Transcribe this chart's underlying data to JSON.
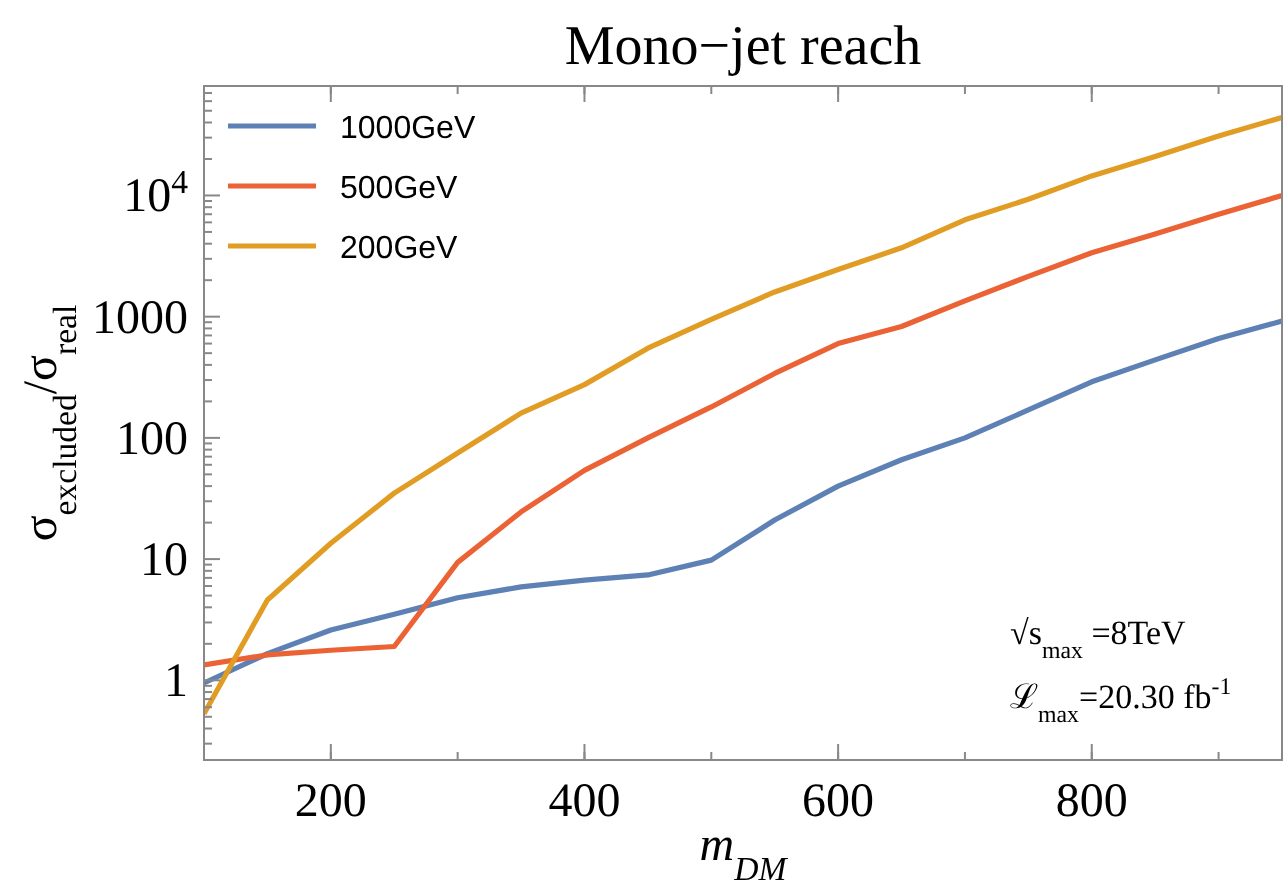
{
  "chart_data": {
    "type": "line",
    "title": "Mono−jet reach",
    "xlabel": "m$_{DM}$",
    "ylabel": "σ$_{excluded}$/σ$_{real}$",
    "x": [
      100,
      150,
      200,
      250,
      300,
      350,
      400,
      450,
      500,
      550,
      600,
      650,
      700,
      750,
      800,
      850,
      900,
      950
    ],
    "series": [
      {
        "name": "1000GeV",
        "color": "#5e81b5",
        "values": [
          0.95,
          1.66,
          2.6,
          3.5,
          4.8,
          5.9,
          6.7,
          7.4,
          9.8,
          21,
          40,
          66,
          100,
          170,
          290,
          440,
          660,
          920
        ]
      },
      {
        "name": "500GeV",
        "color": "#eb6235",
        "values": [
          1.34,
          1.62,
          1.77,
          1.9,
          9.4,
          24.5,
          54,
          100,
          180,
          340,
          600,
          830,
          1350,
          2150,
          3370,
          4800,
          7000,
          10000
        ]
      },
      {
        "name": "200GeV",
        "color": "#e19c24",
        "values": [
          0.53,
          4.6,
          13.5,
          35,
          75,
          160,
          275,
          550,
          950,
          1600,
          2450,
          3700,
          6300,
          9300,
          14500,
          21000,
          31000,
          44000
        ]
      }
    ],
    "xlim": [
      100,
      950
    ],
    "ylim": [
      0.22,
      80000
    ],
    "xticks": [
      200,
      400,
      600,
      800
    ],
    "yticks": [
      1,
      10,
      100,
      1000,
      {
        "value": 10000,
        "label": "10$^{4}$"
      }
    ],
    "log": "y",
    "grid": false,
    "legend": "top left",
    "marker": "none",
    "line_style": "solid",
    "annotations": [
      "√s$_{max}$ =8TeV",
      "ℒ$_{max}$=20.30 fb$^{-1}$"
    ]
  }
}
